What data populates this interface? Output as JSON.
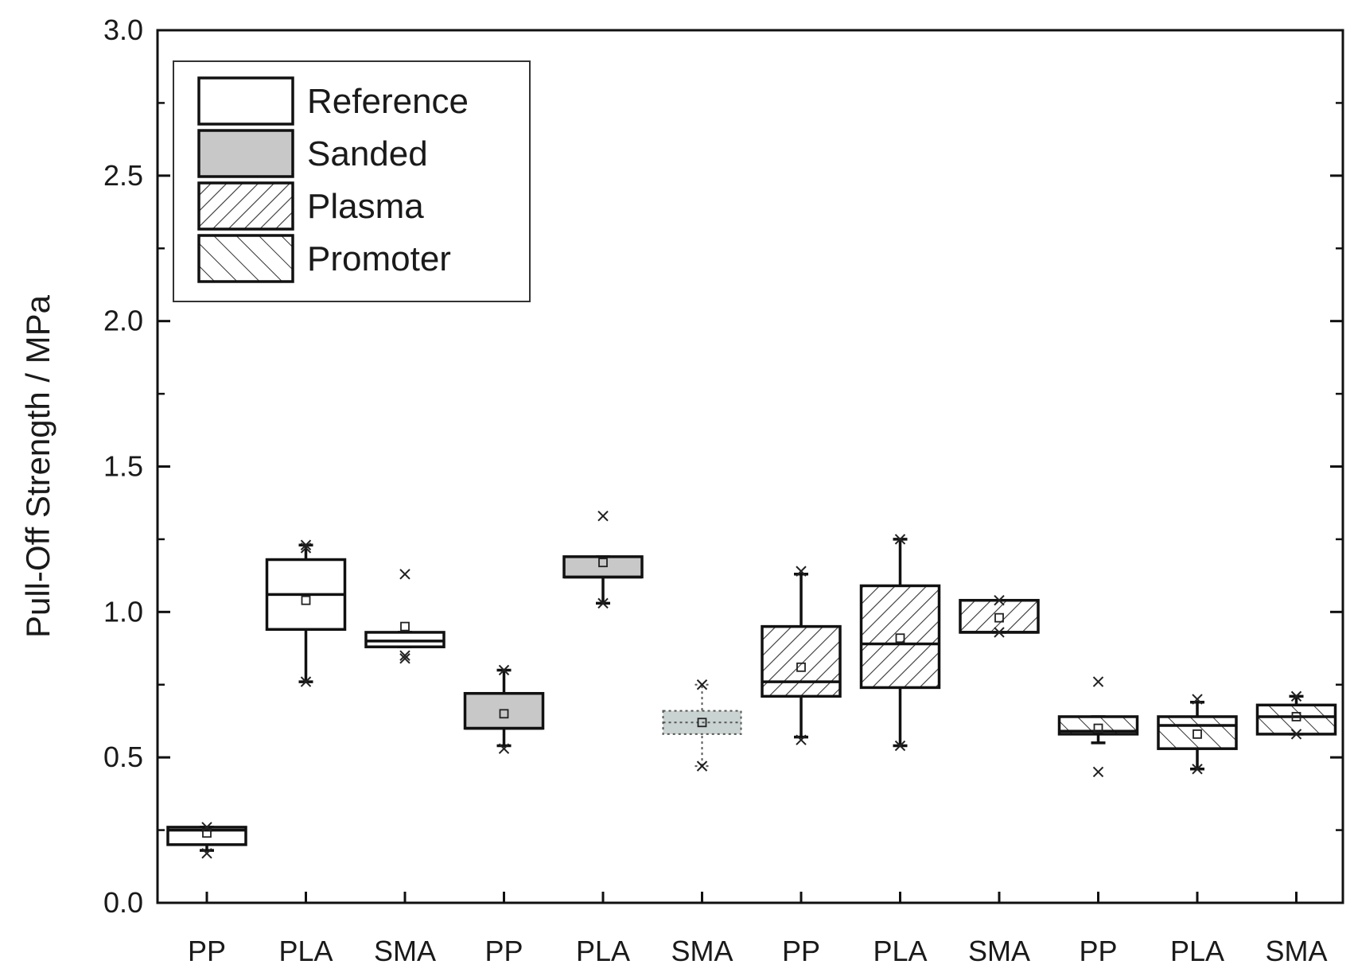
{
  "chart_data": {
    "type": "box",
    "title": "",
    "xlabel": "",
    "ylabel": "Pull-Off Strength   / MPa",
    "ylim": [
      0,
      3.0
    ],
    "yticks": [
      "0.0",
      "0.5",
      "1.0",
      "1.5",
      "2.0",
      "2.5",
      "3.0"
    ],
    "grid": false,
    "legend_position": "top-left",
    "legend": [
      {
        "label": "Reference",
        "pattern": "white",
        "fill": "#ffffff"
      },
      {
        "label": "Sanded",
        "pattern": "gray",
        "fill": "#c8c8c8"
      },
      {
        "label": "Plasma",
        "pattern": "diagonal-forward",
        "fill": "#ffffff"
      },
      {
        "label": "Promoter",
        "pattern": "diagonal-backward",
        "fill": "#ffffff"
      }
    ],
    "categories": [
      "PP",
      "PLA",
      "SMA",
      "PP",
      "PLA",
      "SMA",
      "PP",
      "PLA",
      "SMA",
      "PP",
      "PLA",
      "SMA"
    ],
    "boxes": [
      {
        "label": "PP",
        "group": "Reference",
        "whisker_low": 0.18,
        "q1": 0.2,
        "median": 0.25,
        "q3": 0.26,
        "whisker_high": 0.26,
        "mean": 0.24,
        "outliers": [
          0.17,
          0.26
        ]
      },
      {
        "label": "PLA",
        "group": "Reference",
        "whisker_low": 0.76,
        "q1": 0.94,
        "median": 1.06,
        "q3": 1.18,
        "whisker_high": 1.23,
        "mean": 1.04,
        "outliers": [
          1.22,
          1.23,
          0.76
        ]
      },
      {
        "label": "SMA",
        "group": "Reference",
        "whisker_low": 0.88,
        "q1": 0.88,
        "median": 0.9,
        "q3": 0.93,
        "whisker_high": 0.93,
        "mean": 0.95,
        "outliers": [
          1.13,
          0.84,
          0.85
        ]
      },
      {
        "label": "PP",
        "group": "Sanded",
        "whisker_low": 0.54,
        "q1": 0.6,
        "median": 0.6,
        "q3": 0.72,
        "whisker_high": 0.8,
        "mean": 0.65,
        "outliers": [
          0.8,
          0.53
        ]
      },
      {
        "label": "PLA",
        "group": "Sanded",
        "whisker_low": 1.03,
        "q1": 1.12,
        "median": 1.12,
        "q3": 1.19,
        "whisker_high": 1.19,
        "mean": 1.17,
        "outliers": [
          1.33,
          1.03
        ]
      },
      {
        "label": "SMA",
        "group": "Sanded",
        "whisker_low": 0.47,
        "q1": 0.58,
        "median": 0.62,
        "q3": 0.66,
        "whisker_high": 0.75,
        "mean": 0.62,
        "outliers": [
          0.75,
          0.47
        ],
        "dotted": true
      },
      {
        "label": "PP",
        "group": "Plasma",
        "whisker_low": 0.57,
        "q1": 0.71,
        "median": 0.76,
        "q3": 0.95,
        "whisker_high": 1.13,
        "mean": 0.81,
        "outliers": [
          1.14,
          0.56
        ]
      },
      {
        "label": "PLA",
        "group": "Plasma",
        "whisker_low": 0.54,
        "q1": 0.74,
        "median": 0.89,
        "q3": 1.09,
        "whisker_high": 1.25,
        "mean": 0.91,
        "outliers": [
          1.25,
          0.54
        ]
      },
      {
        "label": "SMA",
        "group": "Plasma",
        "whisker_low": 0.93,
        "q1": 0.93,
        "median": 0.93,
        "q3": 1.04,
        "whisker_high": 1.04,
        "mean": 0.98,
        "outliers": [
          1.04,
          0.93
        ]
      },
      {
        "label": "PP",
        "group": "Promoter",
        "whisker_low": 0.55,
        "q1": 0.58,
        "median": 0.59,
        "q3": 0.64,
        "whisker_high": 0.64,
        "mean": 0.6,
        "outliers": [
          0.76,
          0.45
        ]
      },
      {
        "label": "PLA",
        "group": "Promoter",
        "whisker_low": 0.46,
        "q1": 0.53,
        "median": 0.61,
        "q3": 0.64,
        "whisker_high": 0.69,
        "mean": 0.58,
        "outliers": [
          0.7,
          0.46
        ]
      },
      {
        "label": "SMA",
        "group": "Promoter",
        "whisker_low": 0.58,
        "q1": 0.58,
        "median": 0.64,
        "q3": 0.68,
        "whisker_high": 0.71,
        "mean": 0.64,
        "outliers": [
          0.71,
          0.58
        ]
      }
    ]
  }
}
